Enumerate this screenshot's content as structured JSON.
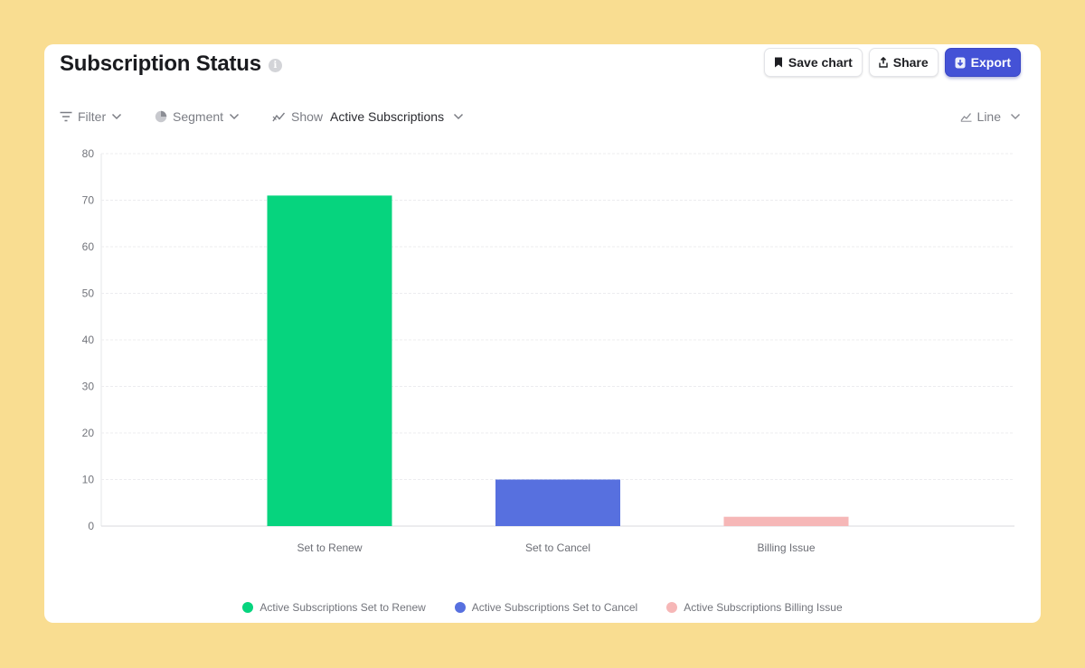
{
  "header": {
    "title": "Subscription Status",
    "info_icon": "i",
    "actions": {
      "save_label": "Save chart",
      "share_label": "Share",
      "export_label": "Export"
    }
  },
  "toolbar": {
    "filter_label": "Filter",
    "segment_label": "Segment",
    "show_prefix": "Show",
    "show_value": "Active Subscriptions",
    "view_label": "Line"
  },
  "colors": {
    "background": "#f9dd91",
    "accent": "#4452d6",
    "renew": "#06d47e",
    "cancel": "#5770df",
    "billing": "#f6b7b7"
  },
  "chart_data": {
    "type": "bar",
    "categories": [
      "Set to Renew",
      "Set to Cancel",
      "Billing Issue"
    ],
    "values": [
      71,
      10,
      2
    ],
    "series": [
      {
        "name": "Active Subscriptions Set to Renew",
        "color": "#06d47e"
      },
      {
        "name": "Active Subscriptions Set to Cancel",
        "color": "#5770df"
      },
      {
        "name": "Active Subscriptions Billing Issue",
        "color": "#f6b7b7"
      }
    ],
    "ylim": [
      0,
      80
    ],
    "yticks": [
      0,
      10,
      20,
      30,
      40,
      50,
      60,
      70,
      80
    ],
    "grid": true,
    "legend_position": "bottom"
  }
}
